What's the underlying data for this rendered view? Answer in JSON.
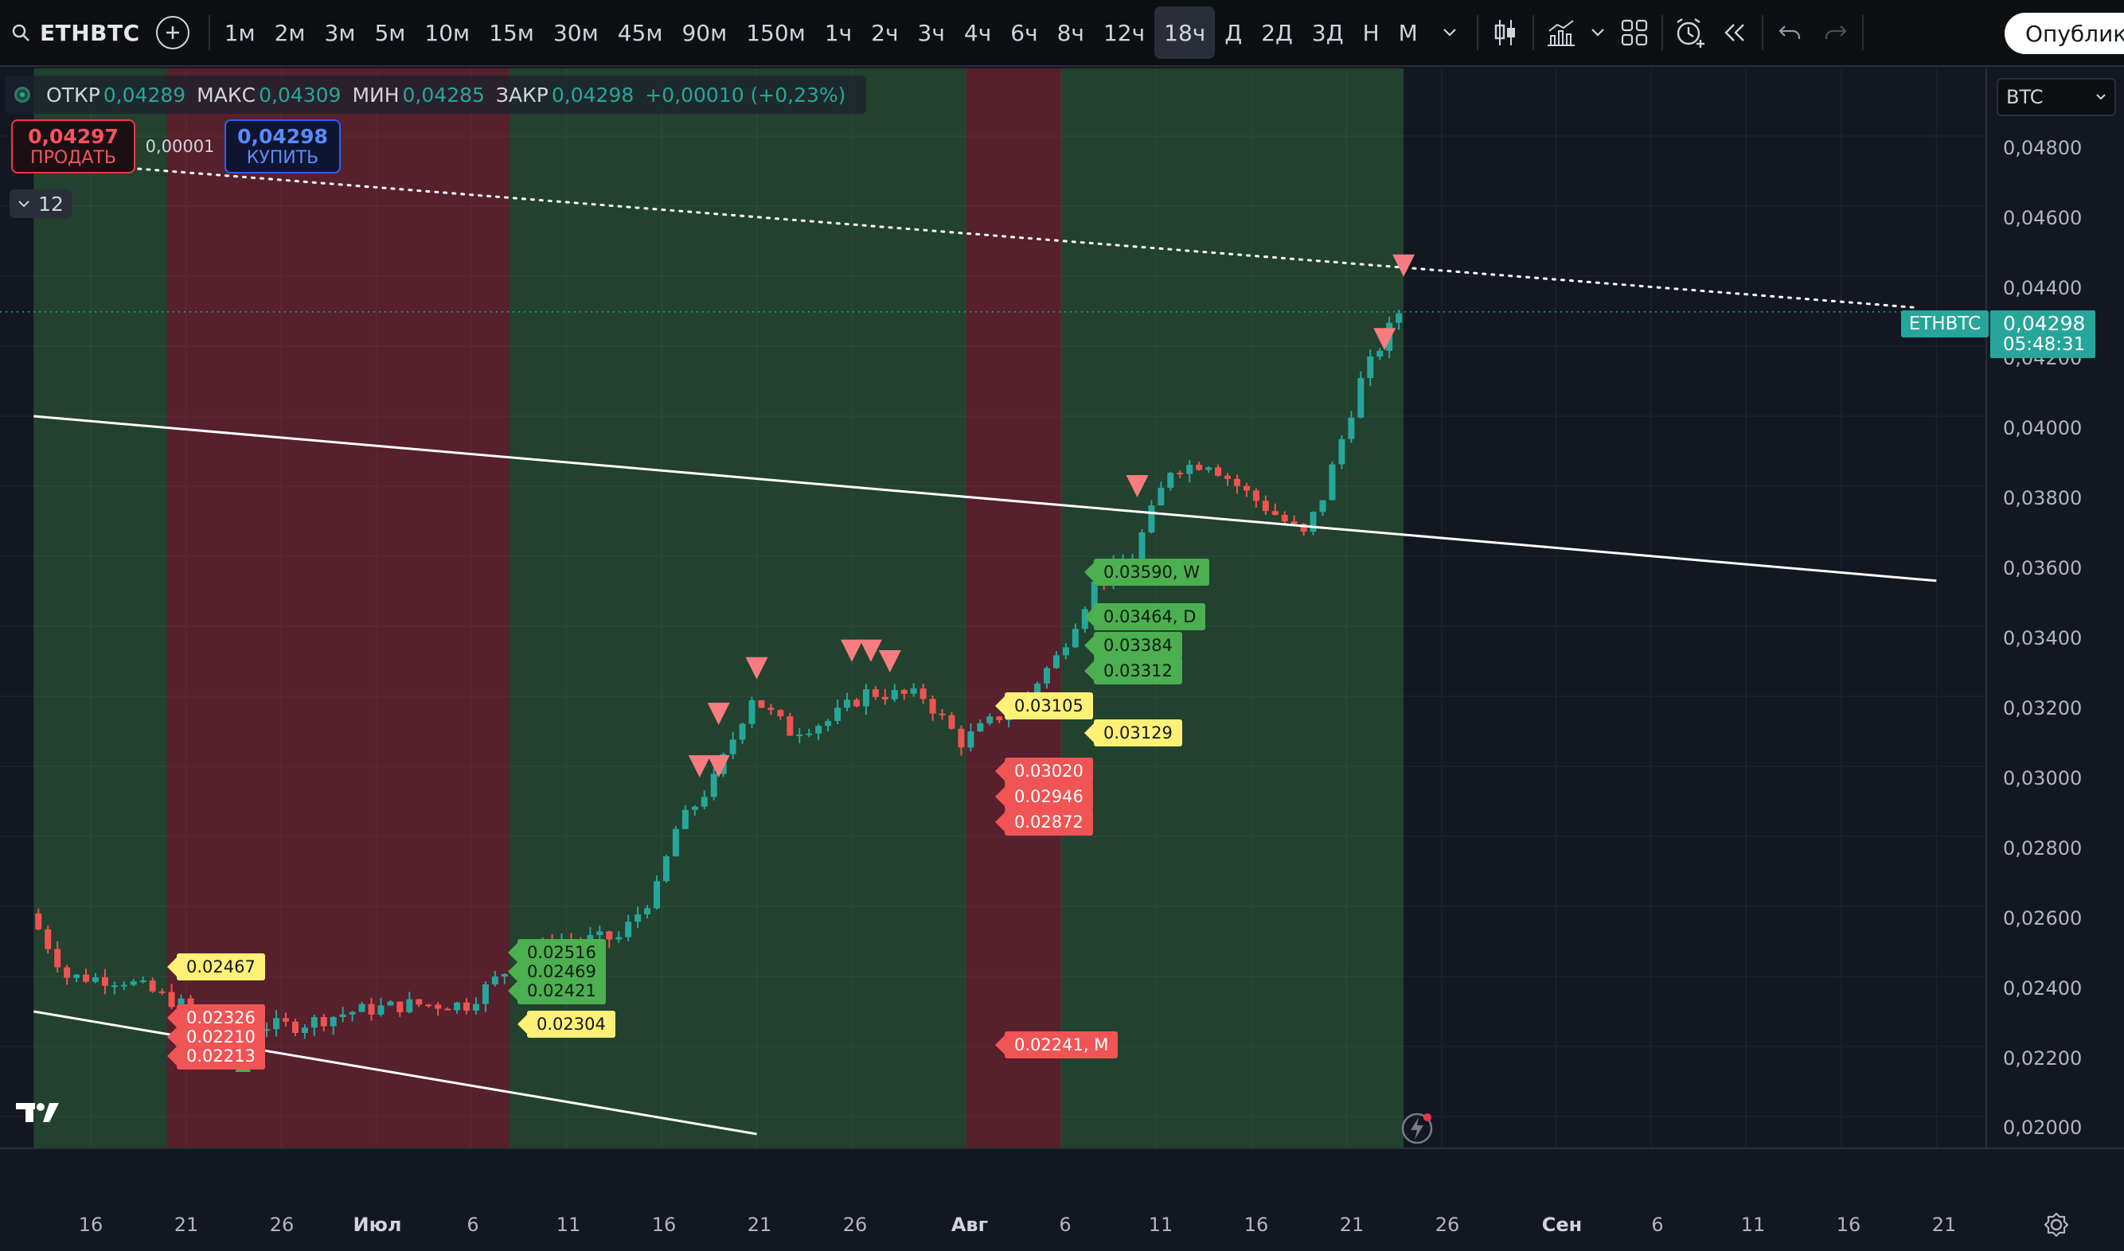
{
  "toolbar": {
    "symbol": "ETHBTC",
    "timeframes": [
      "1м",
      "2м",
      "3м",
      "5м",
      "10м",
      "15м",
      "30м",
      "45м",
      "90м",
      "150м",
      "1ч",
      "2ч",
      "3ч",
      "4ч",
      "6ч",
      "8ч",
      "12ч",
      "18ч",
      "Д",
      "2Д",
      "3Д",
      "Н",
      "М"
    ],
    "active_timeframe": "18ч",
    "publish_label": "Опублико",
    "icons": [
      "search-icon",
      "add-symbol-icon",
      "more-timeframes-chevron-icon",
      "candles-chart-type-icon",
      "indicators-icon",
      "indicators-chevron-icon",
      "layouts-grid-icon",
      "alert-icon",
      "replay-icon",
      "undo-icon",
      "redo-icon"
    ]
  },
  "ohlc": {
    "open_label": "ОТКР",
    "open": "0,04289",
    "high_label": "МАКС",
    "high": "0,04309",
    "low_label": "МИН",
    "low": "0,04285",
    "close_label": "ЗАКР",
    "close": "0,04298",
    "change": "+0,00010 (+0,23%)"
  },
  "trade": {
    "sell_price": "0,04297",
    "sell_label": "ПРОДАТЬ",
    "spread": "0,00001",
    "buy_price": "0,04298",
    "buy_label": "КУПИТЬ"
  },
  "indicators_collapsed_count": "12",
  "unit_select": "BTC",
  "price_axis": {
    "labels": [
      "0,04800",
      "0,04600",
      "0,04400",
      "0,04200",
      "0,04000",
      "0,03800",
      "0,03600",
      "0,03400",
      "0,03200",
      "0,03000",
      "0,02800",
      "0,02600",
      "0,02400",
      "0,02200",
      "0,02000"
    ],
    "current_symbol": "ETHBTC",
    "current_price": "0,04298",
    "countdown": "05:48:31"
  },
  "time_axis": {
    "labels": [
      {
        "t": "16",
        "bold": false
      },
      {
        "t": "21",
        "bold": false
      },
      {
        "t": "26",
        "bold": false
      },
      {
        "t": "Июл",
        "bold": true
      },
      {
        "t": "6",
        "bold": false
      },
      {
        "t": "11",
        "bold": false
      },
      {
        "t": "16",
        "bold": false
      },
      {
        "t": "21",
        "bold": false
      },
      {
        "t": "26",
        "bold": false
      },
      {
        "t": "Авг",
        "bold": true
      },
      {
        "t": "6",
        "bold": false
      },
      {
        "t": "11",
        "bold": false
      },
      {
        "t": "16",
        "bold": false
      },
      {
        "t": "21",
        "bold": false
      },
      {
        "t": "26",
        "bold": false
      },
      {
        "t": "Сен",
        "bold": true
      },
      {
        "t": "6",
        "bold": false
      },
      {
        "t": "11",
        "bold": false
      },
      {
        "t": "16",
        "bold": false
      },
      {
        "t": "21",
        "bold": false
      }
    ]
  },
  "level_labels": [
    {
      "text": "0.02467",
      "color": "y"
    },
    {
      "text": "0.02304",
      "color": "y"
    },
    {
      "text": "0.02326",
      "color": "r"
    },
    {
      "text": "0.02210",
      "color": "r"
    },
    {
      "text": "0.02213",
      "color": "r"
    },
    {
      "text": "0.02516",
      "color": "g"
    },
    {
      "text": "0.02469",
      "color": "g"
    },
    {
      "text": "0.02421",
      "color": "g"
    },
    {
      "text": "0.03105",
      "color": "y"
    },
    {
      "text": "0.03129",
      "color": "y"
    },
    {
      "text": "0.03020",
      "color": "r"
    },
    {
      "text": "0.02946",
      "color": "r"
    },
    {
      "text": "0.02872",
      "color": "r"
    },
    {
      "text": "0.02241, M",
      "color": "r"
    },
    {
      "text": "0.03590, W",
      "color": "g"
    },
    {
      "text": "0.03464, D",
      "color": "g"
    },
    {
      "text": "0.03384",
      "color": "g"
    },
    {
      "text": "0.03312",
      "color": "g"
    }
  ],
  "chart_data": {
    "type": "candlestick",
    "symbol": "ETHBTC",
    "interval": "18ч",
    "ylim": [
      0.0195,
      0.049
    ],
    "x_range": [
      "Jun 13",
      "Sep 26"
    ],
    "background_zones": [
      {
        "from": "Jun 13",
        "to": "Jun 20",
        "color": "green"
      },
      {
        "from": "Jun 20",
        "to": "Jul 8",
        "color": "red"
      },
      {
        "from": "Jul 8",
        "to": "Aug 1",
        "color": "green"
      },
      {
        "from": "Aug 1",
        "to": "Aug 6",
        "color": "red"
      },
      {
        "from": "Aug 6",
        "to": "Aug 24",
        "color": "green"
      }
    ],
    "close_series": [
      {
        "x": "Jun 13",
        "y": 0.0258
      },
      {
        "x": "Jun 15",
        "y": 0.024
      },
      {
        "x": "Jun 18",
        "y": 0.0239
      },
      {
        "x": "Jun 21",
        "y": 0.0232
      },
      {
        "x": "Jun 24",
        "y": 0.0226
      },
      {
        "x": "Jun 27",
        "y": 0.0226
      },
      {
        "x": "Jun 30",
        "y": 0.023
      },
      {
        "x": "Jul 3",
        "y": 0.0232
      },
      {
        "x": "Jul 6",
        "y": 0.0232
      },
      {
        "x": "Jul 9",
        "y": 0.0246
      },
      {
        "x": "Jul 11",
        "y": 0.025
      },
      {
        "x": "Jul 14",
        "y": 0.0251
      },
      {
        "x": "Jul 16",
        "y": 0.0265
      },
      {
        "x": "Jul 17",
        "y": 0.0282
      },
      {
        "x": "Jul 19",
        "y": 0.0296
      },
      {
        "x": "Jul 21",
        "y": 0.032
      },
      {
        "x": "Jul 23",
        "y": 0.031
      },
      {
        "x": "Jul 25",
        "y": 0.0313
      },
      {
        "x": "Jul 27",
        "y": 0.0321
      },
      {
        "x": "Jul 30",
        "y": 0.032
      },
      {
        "x": "Aug 1",
        "y": 0.0307
      },
      {
        "x": "Aug 4",
        "y": 0.0318
      },
      {
        "x": "Aug 6",
        "y": 0.0331
      },
      {
        "x": "Aug 8",
        "y": 0.0352
      },
      {
        "x": "Aug 10",
        "y": 0.036
      },
      {
        "x": "Aug 12",
        "y": 0.0385
      },
      {
        "x": "Aug 14",
        "y": 0.0387
      },
      {
        "x": "Aug 16",
        "y": 0.0378
      },
      {
        "x": "Aug 19",
        "y": 0.0366
      },
      {
        "x": "Aug 20",
        "y": 0.0377
      },
      {
        "x": "Aug 22",
        "y": 0.041
      },
      {
        "x": "Aug 24",
        "y": 0.04298
      }
    ],
    "trendlines": [
      {
        "name": "upper",
        "from": {
          "x": "Jun 13",
          "y": 0.04
        },
        "to": {
          "x": "Sep 21",
          "y": 0.0353
        }
      },
      {
        "name": "lower",
        "from": {
          "x": "Jun 13",
          "y": 0.023
        },
        "to": {
          "x": "Jul 21",
          "y": 0.0195
        }
      },
      {
        "name": "dotted-resistance",
        "from": {
          "x": "Jun 13",
          "y": 0.0473
        },
        "to": {
          "x": "Sep 20",
          "y": 0.0431
        }
      }
    ],
    "sell_markers": [
      {
        "x": "Jul 18",
        "y": 0.03
      },
      {
        "x": "Jul 19",
        "y": 0.03
      },
      {
        "x": "Jul 19",
        "y": 0.0315
      },
      {
        "x": "Jul 21",
        "y": 0.0328
      },
      {
        "x": "Jul 26",
        "y": 0.0333
      },
      {
        "x": "Jul 27",
        "y": 0.0333
      },
      {
        "x": "Jul 28",
        "y": 0.033
      },
      {
        "x": "Aug 10",
        "y": 0.038
      },
      {
        "x": "Aug 23",
        "y": 0.0422
      },
      {
        "x": "Aug 24",
        "y": 0.0443
      }
    ],
    "buy_markers": [
      {
        "x": "Jun 24",
        "y": 0.0215
      }
    ]
  }
}
